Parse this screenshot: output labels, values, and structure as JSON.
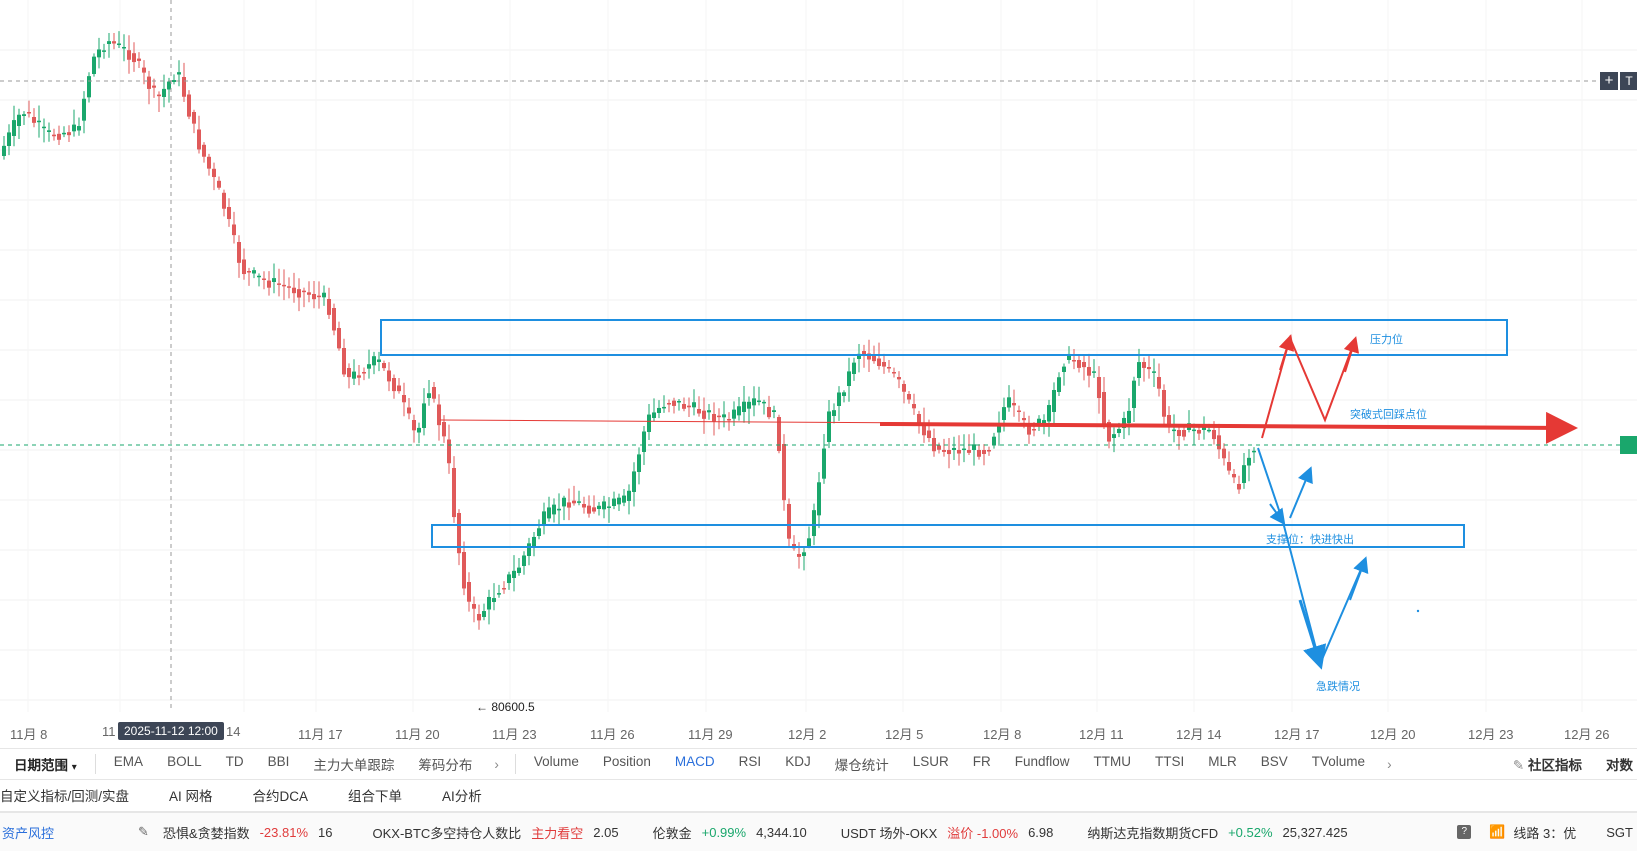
{
  "chart": {
    "x_labels": [
      "11月 8",
      "11",
      "14",
      "11月 17",
      "11月 20",
      "11月 23",
      "11月 26",
      "11月 29",
      "12月 2",
      "12月 5",
      "12月 8",
      "12月 11",
      "12月 14",
      "12月 17",
      "12月 20",
      "12月 23",
      "12月 26"
    ],
    "crosshair_label": "2025-11-12 12:00",
    "low_marker": "← 80600.5",
    "annotations": {
      "resistance": "压力位",
      "breakout": "突破式回踩点位",
      "support": "支撑位：快进快出",
      "crash": "急跌情况"
    },
    "colors": {
      "up": "#1aa76c",
      "down": "#e05a5a",
      "box": "#1e8fe0",
      "red_arrow": "#e53935",
      "blue_arrow": "#1e8fe0"
    }
  },
  "toolbar": {
    "date_range": "日期范围",
    "main_indicators": [
      "EMA",
      "BOLL",
      "TD",
      "BBI",
      "主力大单跟踪",
      "筹码分布"
    ],
    "sub_indicators": [
      "Volume",
      "Position",
      "MACD",
      "RSI",
      "KDJ",
      "爆仓统计",
      "LSUR",
      "FR",
      "Fundflow",
      "TTMU",
      "TTSI",
      "MLR",
      "BSV",
      "TVolume"
    ],
    "active_sub": "MACD",
    "community": "社区指标",
    "compare": "对数"
  },
  "toolbar2": [
    "自定义指标/回测/实盘",
    "AI 网格",
    "合约DCA",
    "组合下单",
    "AI分析"
  ],
  "statusbar": {
    "risk": "资产风控",
    "fear_greed_label": "恐惧&贪婪指数",
    "fear_greed_change": "-23.81%",
    "fear_greed_value": "16",
    "ls_label": "OKX-BTC多空持仓人数比",
    "ls_signal": "主力看空",
    "ls_value": "2.05",
    "gold_label": "伦敦金",
    "gold_change": "+0.99%",
    "gold_value": "4,344.10",
    "usdt_label": "USDT 场外-OKX",
    "usdt_premium": "溢价 -1.00%",
    "usdt_value": "6.98",
    "nasdaq_label": "纳斯达克指数期货CFD",
    "nasdaq_change": "+0.52%",
    "nasdaq_value": "25,327.425",
    "line_label": "线路 3：优",
    "tz": "SGT"
  }
}
